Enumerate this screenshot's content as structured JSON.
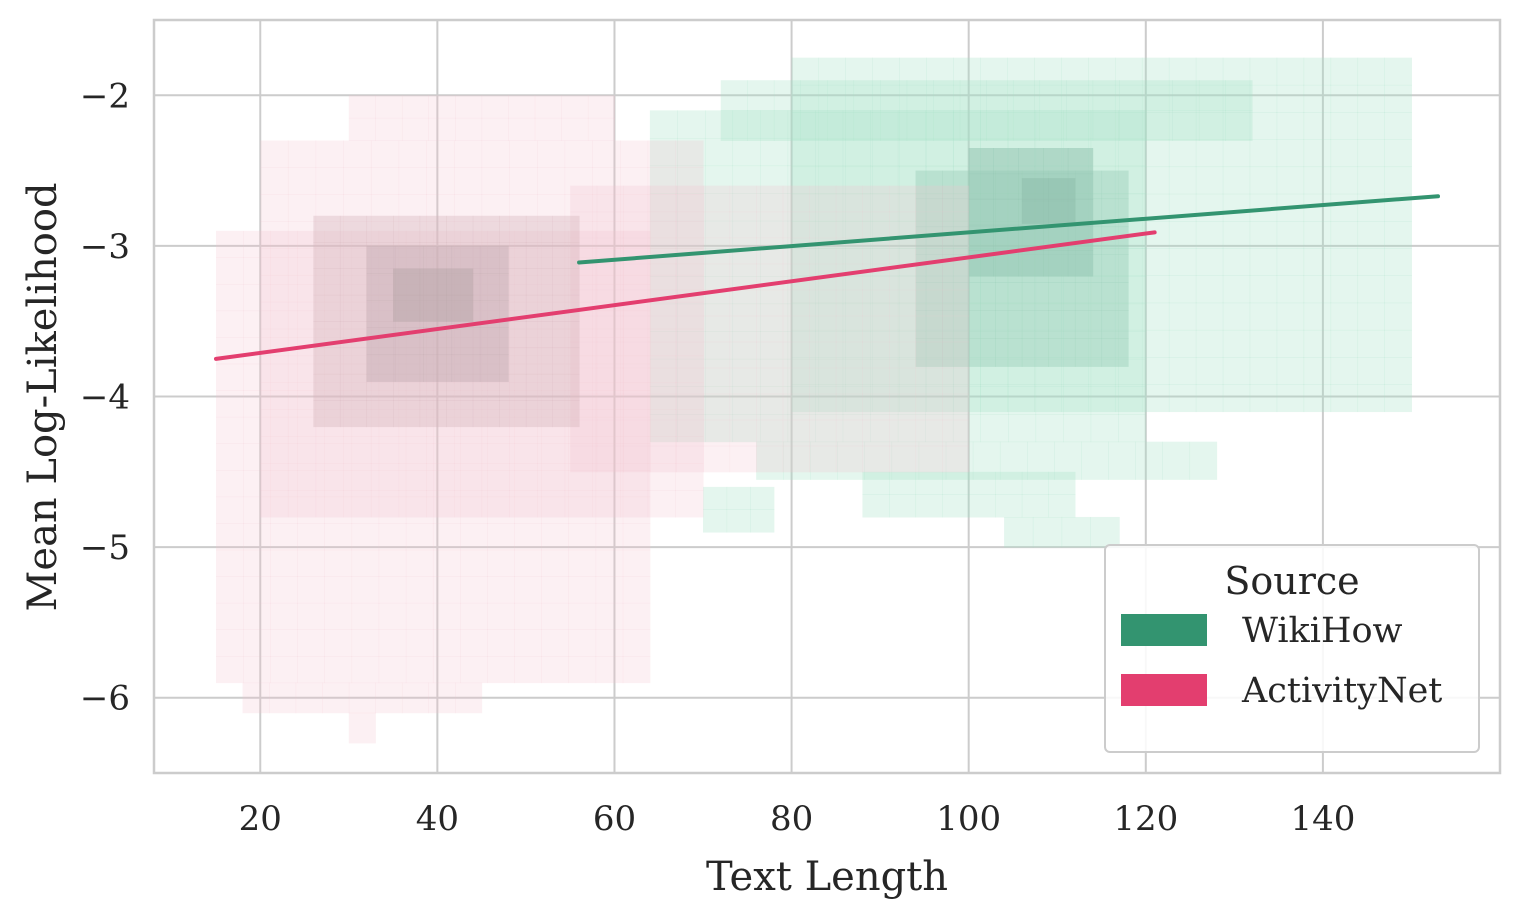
{
  "chart_data": {
    "type": "heatmap",
    "xlabel": "Text Length",
    "ylabel": "Mean Log-Likelihood",
    "xlim": [
      8,
      160
    ],
    "ylim": [
      -6.5,
      -1.5
    ],
    "x_ticks": [
      20,
      40,
      60,
      80,
      100,
      120,
      140
    ],
    "y_ticks": [
      -2,
      -3,
      -4,
      -5,
      -6
    ],
    "y_tick_labels": [
      "−2",
      "−3",
      "−4",
      "−5",
      "−6"
    ],
    "grid": true,
    "legend": {
      "title": "Source",
      "position": "bottom-right"
    },
    "bin_width": {
      "x": 3.05,
      "y": 0.18
    },
    "series": [
      {
        "name": "WikiHow",
        "color": "#339470",
        "histogram_color": "#a6e0c8",
        "regression": {
          "x": [
            56,
            153
          ],
          "y": [
            -3.11,
            -2.67
          ]
        },
        "density_blocks": [
          {
            "x": [
              64,
              120
            ],
            "y": [
              -4.3,
              -2.1
            ],
            "level": 1
          },
          {
            "x": [
              72,
              132
            ],
            "y": [
              -2.3,
              -1.9
            ],
            "level": 1
          },
          {
            "x": [
              80,
              150
            ],
            "y": [
              -4.1,
              -1.75
            ],
            "level": 1
          },
          {
            "x": [
              76,
              128
            ],
            "y": [
              -4.55,
              -4.3
            ],
            "level": 1
          },
          {
            "x": [
              88,
              112
            ],
            "y": [
              -4.8,
              -4.5
            ],
            "level": 1
          },
          {
            "x": [
              70,
              78
            ],
            "y": [
              -4.9,
              -4.6
            ],
            "level": 1
          },
          {
            "x": [
              104,
              117
            ],
            "y": [
              -5.0,
              -4.8
            ],
            "level": 1
          },
          {
            "x": [
              94,
              118
            ],
            "y": [
              -3.8,
              -2.5
            ],
            "level": 2
          },
          {
            "x": [
              100,
              114
            ],
            "y": [
              -3.2,
              -2.35
            ],
            "level": 3
          },
          {
            "x": [
              106,
              112
            ],
            "y": [
              -2.85,
              -2.55
            ],
            "level": 4
          }
        ]
      },
      {
        "name": "ActivityNet",
        "color": "#e33e6f",
        "histogram_color": "#f1c1cd",
        "regression": {
          "x": [
            15,
            121
          ],
          "y": [
            -3.75,
            -2.91
          ]
        },
        "density_blocks": [
          {
            "x": [
              15,
              64
            ],
            "y": [
              -5.9,
              -2.9
            ],
            "level": 1
          },
          {
            "x": [
              20,
              70
            ],
            "y": [
              -4.8,
              -2.3
            ],
            "level": 1
          },
          {
            "x": [
              30,
              60
            ],
            "y": [
              -2.3,
              -2.0
            ],
            "level": 1
          },
          {
            "x": [
              18,
              45
            ],
            "y": [
              -6.1,
              -5.9
            ],
            "level": 1
          },
          {
            "x": [
              30,
              33
            ],
            "y": [
              -6.3,
              -6.1
            ],
            "level": 1
          },
          {
            "x": [
              55,
              100
            ],
            "y": [
              -4.5,
              -2.6
            ],
            "level": 1
          },
          {
            "x": [
              26,
              56
            ],
            "y": [
              -4.2,
              -2.8
            ],
            "level": 2
          },
          {
            "x": [
              32,
              48
            ],
            "y": [
              -3.9,
              -3.0
            ],
            "level": 3
          },
          {
            "x": [
              35,
              44
            ],
            "y": [
              -3.5,
              -3.15
            ],
            "level": 4
          }
        ]
      }
    ]
  }
}
